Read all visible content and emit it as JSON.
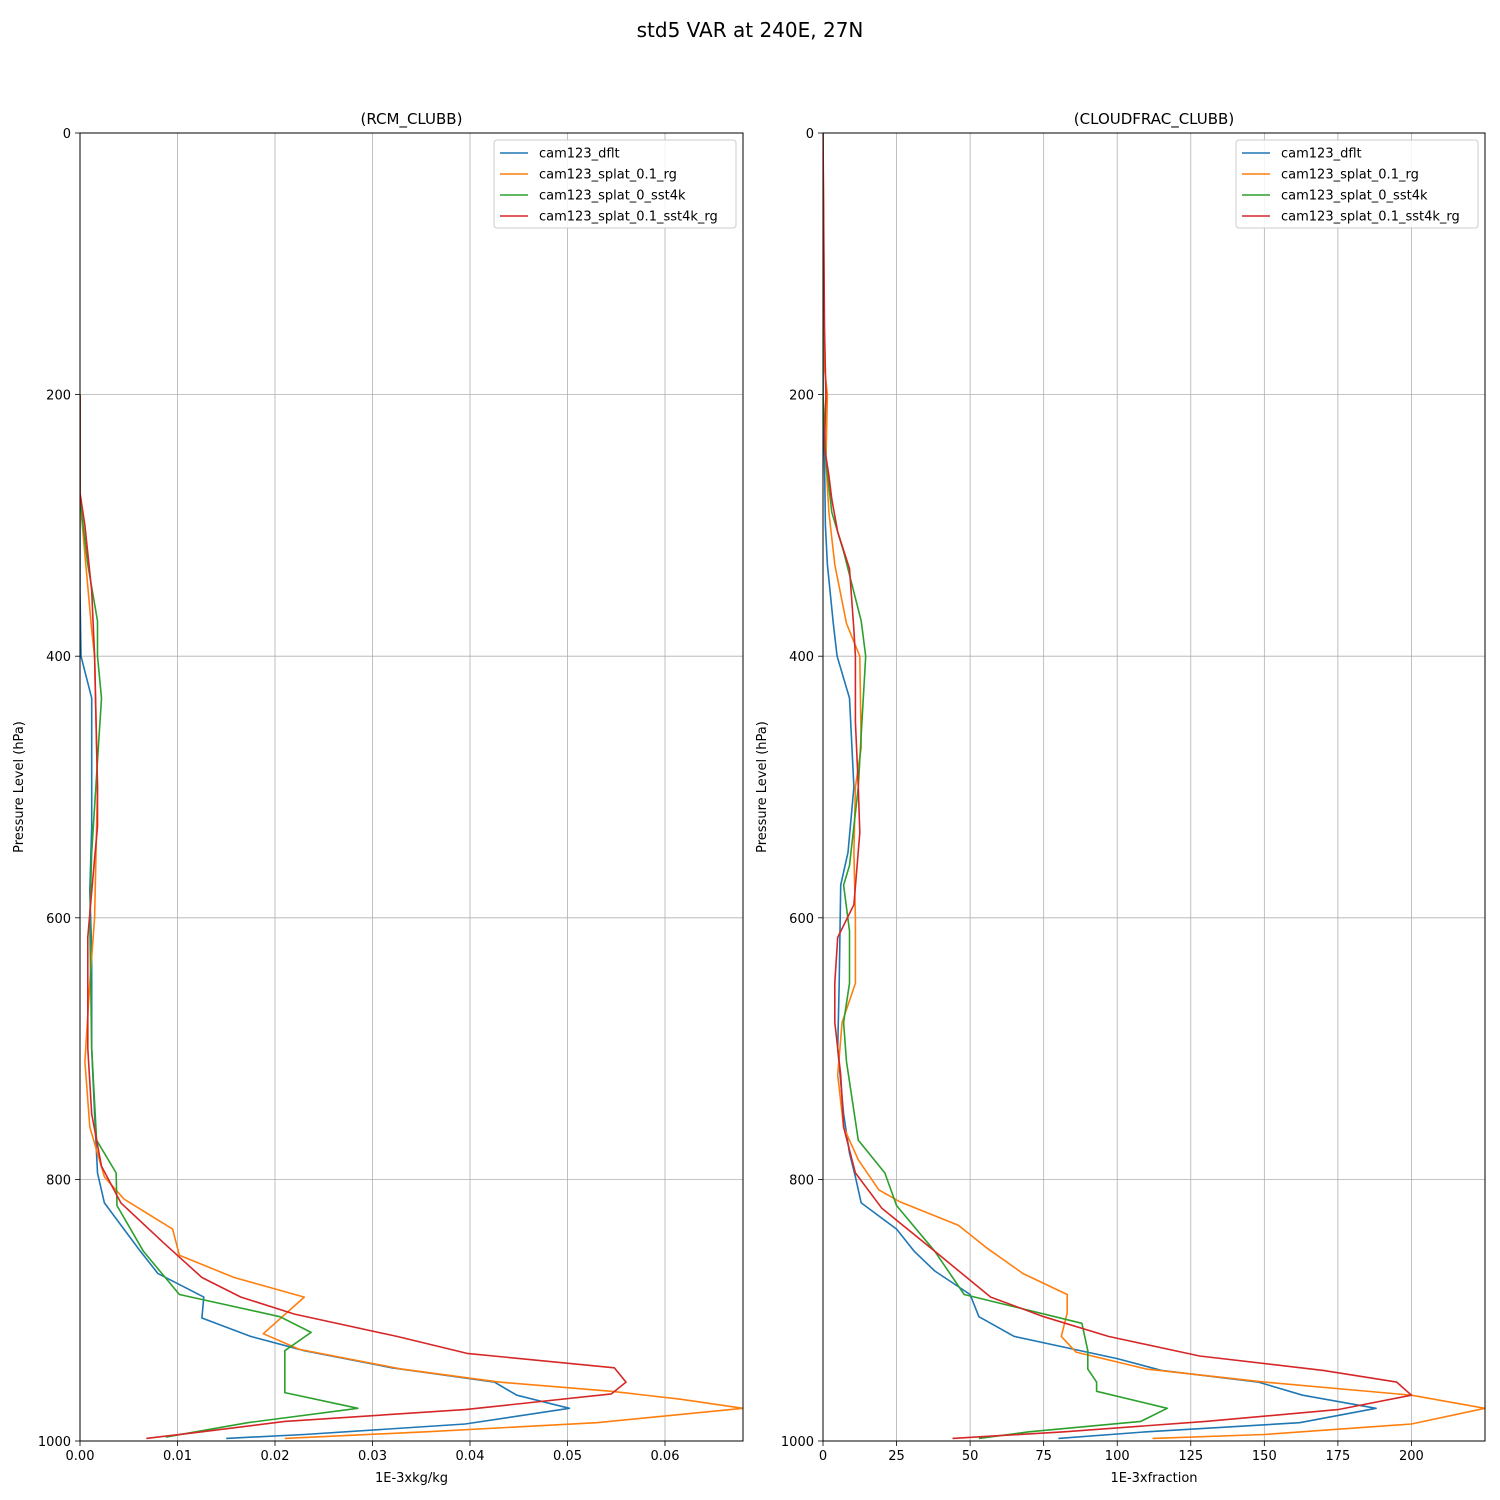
{
  "figure_title": "std5 VAR at 240E, 27N",
  "colors": {
    "cam123_dflt": "#1f77b4",
    "cam123_splat_0.1_rg": "#ff7f0e",
    "cam123_splat_0_sst4k": "#2ca02c",
    "cam123_splat_0.1_sst4k_rg": "#d62728"
  },
  "chart_data": [
    {
      "type": "line",
      "title": "(RCM_CLUBB)",
      "xlabel": "1E-3xkg/kg",
      "ylabel": "Pressure Level (hPa)",
      "xlim": [
        0,
        0.068
      ],
      "ylim": [
        1000,
        0
      ],
      "y_inverted": true,
      "grid": true,
      "legend": "top-right",
      "xticks": [
        "0.00",
        "0.01",
        "0.02",
        "0.03",
        "0.04",
        "0.05",
        "0.06"
      ],
      "yticks": [
        "0",
        "200",
        "400",
        "600",
        "800",
        "1000"
      ],
      "series": [
        {
          "name": "cam123_dflt",
          "points": [
            [
              0.0,
              200
            ],
            [
              0.0,
              300
            ],
            [
              0.0,
              350
            ],
            [
              0.0001,
              400
            ],
            [
              0.0012,
              432
            ],
            [
              0.0012,
              530
            ],
            [
              0.001,
              580
            ],
            [
              0.0012,
              625
            ],
            [
              0.0012,
              700
            ],
            [
              0.0015,
              750
            ],
            [
              0.0018,
              795
            ],
            [
              0.0025,
              818
            ],
            [
              0.0045,
              838
            ],
            [
              0.0062,
              855
            ],
            [
              0.008,
              872
            ],
            [
              0.0127,
              890
            ],
            [
              0.0125,
              906
            ],
            [
              0.0175,
              920
            ],
            [
              0.023,
              931
            ],
            [
              0.032,
              944
            ],
            [
              0.0425,
              955
            ],
            [
              0.0448,
              965
            ],
            [
              0.0502,
              975
            ],
            [
              0.0395,
              987
            ],
            [
              0.023,
              995
            ],
            [
              0.015,
              998
            ]
          ]
        },
        {
          "name": "cam123_splat_0.1_rg",
          "points": [
            [
              0.0,
              200
            ],
            [
              0.0,
              280
            ],
            [
              0.0006,
              330
            ],
            [
              0.0012,
              380
            ],
            [
              0.0015,
              400
            ],
            [
              0.0018,
              500
            ],
            [
              0.0015,
              600
            ],
            [
              0.001,
              650
            ],
            [
              0.0005,
              710
            ],
            [
              0.001,
              760
            ],
            [
              0.0025,
              798
            ],
            [
              0.0045,
              815
            ],
            [
              0.0095,
              838
            ],
            [
              0.0102,
              858
            ],
            [
              0.0158,
              875
            ],
            [
              0.023,
              890
            ],
            [
              0.0188,
              918
            ],
            [
              0.0225,
              930
            ],
            [
              0.033,
              945
            ],
            [
              0.043,
              955
            ],
            [
              0.0545,
              962
            ],
            [
              0.0615,
              968
            ],
            [
              0.068,
              975
            ],
            [
              0.053,
              986
            ],
            [
              0.0355,
              993
            ],
            [
              0.021,
              998
            ]
          ]
        },
        {
          "name": "cam123_splat_0_sst4k",
          "points": [
            [
              0.0,
              200
            ],
            [
              0.0,
              280
            ],
            [
              0.0008,
              330
            ],
            [
              0.0018,
              373
            ],
            [
              0.0018,
              400
            ],
            [
              0.0022,
              432
            ],
            [
              0.0018,
              480
            ],
            [
              0.0012,
              550
            ],
            [
              0.001,
              600
            ],
            [
              0.0012,
              700
            ],
            [
              0.0017,
              770
            ],
            [
              0.0037,
              795
            ],
            [
              0.0038,
              820
            ],
            [
              0.0065,
              855
            ],
            [
              0.0102,
              888
            ],
            [
              0.0205,
              905
            ],
            [
              0.0237,
              917
            ],
            [
              0.021,
              931
            ],
            [
              0.021,
              945
            ],
            [
              0.021,
              963
            ],
            [
              0.0285,
              975
            ],
            [
              0.0172,
              986
            ],
            [
              0.0088,
              997
            ]
          ]
        },
        {
          "name": "cam123_splat_0.1_sst4k_rg",
          "points": [
            [
              0.0,
              200
            ],
            [
              0.0,
              275
            ],
            [
              0.0005,
              300
            ],
            [
              0.0012,
              350
            ],
            [
              0.0015,
              400
            ],
            [
              0.0018,
              500
            ],
            [
              0.0018,
              530
            ],
            [
              0.0012,
              580
            ],
            [
              0.0008,
              615
            ],
            [
              0.0008,
              700
            ],
            [
              0.0012,
              750
            ],
            [
              0.0022,
              790
            ],
            [
              0.0042,
              818
            ],
            [
              0.0085,
              848
            ],
            [
              0.0125,
              875
            ],
            [
              0.0165,
              890
            ],
            [
              0.022,
              903
            ],
            [
              0.0325,
              920
            ],
            [
              0.0397,
              933
            ],
            [
              0.0548,
              944
            ],
            [
              0.056,
              955
            ],
            [
              0.0545,
              964
            ],
            [
              0.0395,
              976
            ],
            [
              0.021,
              985
            ],
            [
              0.0125,
              993
            ],
            [
              0.0068,
              998
            ]
          ]
        }
      ]
    },
    {
      "type": "line",
      "title": "(CLOUDFRAC_CLUBB)",
      "xlabel": "1E-3xfraction",
      "ylabel": "Pressure Level (hPa)",
      "xlim": [
        0,
        225
      ],
      "ylim": [
        1000,
        0
      ],
      "y_inverted": true,
      "grid": true,
      "legend": "top-right",
      "xticks": [
        "0",
        "25",
        "50",
        "75",
        "100",
        "125",
        "150",
        "175",
        "200"
      ],
      "yticks": [
        "0",
        "200",
        "400",
        "600",
        "800",
        "1000"
      ],
      "series": [
        {
          "name": "cam123_dflt",
          "points": [
            [
              0,
              0
            ],
            [
              0,
              200
            ],
            [
              0.5,
              250
            ],
            [
              0.8,
              300
            ],
            [
              1.5,
              330
            ],
            [
              3.5,
              375
            ],
            [
              4.8,
              400
            ],
            [
              9,
              432
            ],
            [
              10.5,
              500
            ],
            [
              8.5,
              550
            ],
            [
              6,
              575
            ],
            [
              5.5,
              650
            ],
            [
              5,
              700
            ],
            [
              7,
              750
            ],
            [
              9,
              780
            ],
            [
              11,
              798
            ],
            [
              13,
              818
            ],
            [
              25,
              838
            ],
            [
              31,
              855
            ],
            [
              38,
              870
            ],
            [
              50,
              888
            ],
            [
              53,
              905
            ],
            [
              65,
              920
            ],
            [
              100,
              937
            ],
            [
              115,
              946
            ],
            [
              148,
              955
            ],
            [
              163,
              965
            ],
            [
              188,
              975
            ],
            [
              162,
              986
            ],
            [
              110,
              993
            ],
            [
              80,
              998
            ]
          ]
        },
        {
          "name": "cam123_splat_0.1_rg",
          "points": [
            [
              0,
              0
            ],
            [
              0.5,
              180
            ],
            [
              1.5,
              200
            ],
            [
              1,
              250
            ],
            [
              2,
              290
            ],
            [
              4,
              330
            ],
            [
              8,
              375
            ],
            [
              12.5,
              400
            ],
            [
              13,
              470
            ],
            [
              11,
              500
            ],
            [
              10.5,
              550
            ],
            [
              11,
              600
            ],
            [
              11,
              650
            ],
            [
              6.5,
              680
            ],
            [
              5,
              720
            ],
            [
              7,
              760
            ],
            [
              12,
              785
            ],
            [
              19,
              808
            ],
            [
              26,
              817
            ],
            [
              46,
              835
            ],
            [
              56,
              853
            ],
            [
              68,
              872
            ],
            [
              83,
              888
            ],
            [
              83,
              902
            ],
            [
              81,
              920
            ],
            [
              86,
              932
            ],
            [
              110,
              945
            ],
            [
              150,
              955
            ],
            [
              200,
              965
            ],
            [
              225,
              975
            ],
            [
              200,
              987
            ],
            [
              150,
              995
            ],
            [
              112,
              998
            ]
          ]
        },
        {
          "name": "cam123_splat_0_sst4k",
          "points": [
            [
              0,
              0
            ],
            [
              0,
              200
            ],
            [
              1,
              250
            ],
            [
              3,
              290
            ],
            [
              7,
              320
            ],
            [
              13,
              373
            ],
            [
              14.5,
              400
            ],
            [
              13,
              460
            ],
            [
              12,
              500
            ],
            [
              9,
              560
            ],
            [
              7,
              575
            ],
            [
              9,
              610
            ],
            [
              9,
              650
            ],
            [
              7,
              680
            ],
            [
              8,
              710
            ],
            [
              12,
              770
            ],
            [
              21,
              795
            ],
            [
              25,
              820
            ],
            [
              38,
              855
            ],
            [
              48,
              888
            ],
            [
              88,
              910
            ],
            [
              90,
              931
            ],
            [
              90,
              945
            ],
            [
              93,
              955
            ],
            [
              93,
              962
            ],
            [
              117,
              975
            ],
            [
              108,
              985
            ],
            [
              70,
              993
            ],
            [
              53,
              998
            ]
          ]
        },
        {
          "name": "cam123_splat_0.1_sst4k_rg",
          "points": [
            [
              0,
              0
            ],
            [
              0.5,
              150
            ],
            [
              1,
              200
            ],
            [
              0.5,
              240
            ],
            [
              2,
              262
            ],
            [
              3,
              280
            ],
            [
              5,
              305
            ],
            [
              9,
              333
            ],
            [
              10.5,
              380
            ],
            [
              11,
              400
            ],
            [
              11,
              450
            ],
            [
              12,
              500
            ],
            [
              12.5,
              535
            ],
            [
              10.5,
              590
            ],
            [
              5,
              615
            ],
            [
              4,
              650
            ],
            [
              4,
              680
            ],
            [
              6,
              720
            ],
            [
              7,
              760
            ],
            [
              11,
              795
            ],
            [
              20,
              822
            ],
            [
              38,
              855
            ],
            [
              57,
              890
            ],
            [
              75,
              905
            ],
            [
              97,
              920
            ],
            [
              128,
              935
            ],
            [
              170,
              946
            ],
            [
              195,
              955
            ],
            [
              200,
              965
            ],
            [
              175,
              976
            ],
            [
              130,
              985
            ],
            [
              82,
              993
            ],
            [
              44,
              998
            ]
          ]
        }
      ]
    }
  ]
}
